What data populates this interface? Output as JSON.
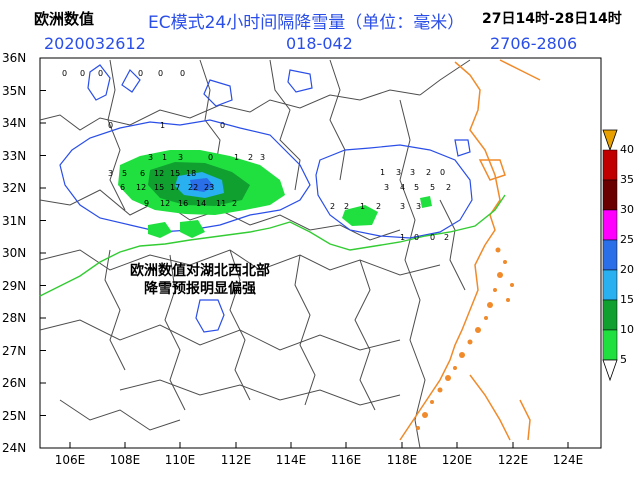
{
  "header": {
    "source": "欧洲数值",
    "title": "EC模式24小时间隔降雪量（单位：毫米）",
    "period": "27日14时-28日14时",
    "init_time": "2020032612",
    "step": "018-042",
    "day_range": "2706-2806"
  },
  "annotation": {
    "line1": "欧洲数值对湖北西北部",
    "line2": "降雪预报明显偏强"
  },
  "axes": {
    "lat_labels": [
      "36N",
      "35N",
      "34N",
      "33N",
      "32N",
      "31N",
      "30N",
      "29N",
      "28N",
      "27N",
      "26N",
      "25N",
      "24N"
    ],
    "lon_labels": [
      "106E",
      "108E",
      "110E",
      "112E",
      "114E",
      "116E",
      "118E",
      "120E",
      "122E",
      "124E"
    ]
  },
  "colorbar": {
    "ticks": [
      "40",
      "35",
      "30",
      "25",
      "20",
      "15",
      "10",
      "5"
    ],
    "colors": [
      "#e8a000",
      "#c00000",
      "#6a0000",
      "#ff00ff",
      "#2a6ee8",
      "#28b0f0",
      "#10a030",
      "#20e040"
    ]
  },
  "colors": {
    "province_border": "#4d4d4d",
    "contour_blue": "#2a4ee8",
    "contour_green": "#33cc33",
    "coast": "#f08a2a"
  }
}
